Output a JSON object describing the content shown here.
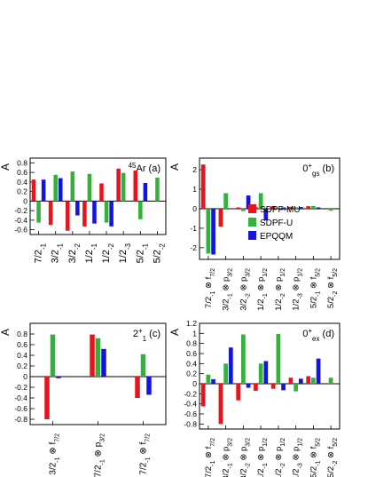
{
  "series_colors": [
    "#e8141c",
    "#33b13a",
    "#1414e0"
  ],
  "legend": [
    "SDPF-MU",
    "SDPF-U",
    "EPQQM"
  ],
  "chart_data": [
    {
      "type": "bar",
      "panel_label": "(a)",
      "label_parts": [
        {
          "t": "45",
          "sup": true
        },
        {
          "t": "Ar"
        },
        {
          "t": "  (a)"
        }
      ],
      "ylabel": "A",
      "ylim": [
        -0.7,
        0.9
      ],
      "yticks": [
        -0.6,
        -0.4,
        -0.2,
        0,
        0.2,
        0.4,
        0.6,
        0.8
      ],
      "categories": [
        [
          {
            "t": "7/2"
          },
          {
            "t": "-",
            "sub": true
          },
          {
            "t": "1",
            "sub": true
          }
        ],
        [
          {
            "t": "3/2"
          },
          {
            "t": "-",
            "sub": true
          },
          {
            "t": "1",
            "sub": true
          }
        ],
        [
          {
            "t": "3/2"
          },
          {
            "t": "-",
            "sub": true
          },
          {
            "t": "2",
            "sub": true
          }
        ],
        [
          {
            "t": "1/2"
          },
          {
            "t": "-",
            "sub": true
          },
          {
            "t": "1",
            "sub": true
          }
        ],
        [
          {
            "t": "1/2"
          },
          {
            "t": "-",
            "sub": true
          },
          {
            "t": "2",
            "sub": true
          }
        ],
        [
          {
            "t": "1/2"
          },
          {
            "t": "-",
            "sub": true
          },
          {
            "t": "3",
            "sub": true
          }
        ],
        [
          {
            "t": "5/2"
          },
          {
            "t": "-",
            "sub": true
          },
          {
            "t": "1",
            "sub": true
          }
        ],
        [
          {
            "t": "5/2"
          },
          {
            "t": "-",
            "sub": true
          },
          {
            "t": "2",
            "sub": true
          }
        ]
      ],
      "series": [
        {
          "name": "SDPF-MU",
          "values": [
            0.45,
            -0.5,
            -0.62,
            -0.53,
            0.37,
            0.68,
            0.64,
            null
          ]
        },
        {
          "name": "SDPF-U",
          "values": [
            -0.45,
            0.55,
            0.62,
            0.57,
            -0.45,
            0.59,
            -0.38,
            0.49
          ]
        },
        {
          "name": "EPQQM",
          "values": [
            0.45,
            0.48,
            -0.3,
            -0.47,
            -0.53,
            null,
            0.38,
            null
          ]
        }
      ]
    },
    {
      "type": "bar",
      "panel_label": "(b)",
      "label_parts": [
        {
          "t": "0"
        },
        {
          "t": "+",
          "sup": true
        },
        {
          "t": "gs",
          "sub": true
        },
        {
          "t": "  (b)"
        }
      ],
      "ylabel": "A",
      "ylim": [
        -2.6,
        2.6
      ],
      "yticks": [
        -2,
        -1,
        0,
        1,
        2
      ],
      "show_legend": true,
      "categories": [
        [
          {
            "t": "7/2"
          },
          {
            "t": "-",
            "sub": true
          },
          {
            "t": "1",
            "sub": true
          },
          {
            "t": " ⊗ f"
          },
          {
            "t": "7/2",
            "sub": true
          }
        ],
        [
          {
            "t": "3/2"
          },
          {
            "t": "-",
            "sub": true
          },
          {
            "t": "1",
            "sub": true
          },
          {
            "t": " ⊗ p"
          },
          {
            "t": "3/2",
            "sub": true
          }
        ],
        [
          {
            "t": "3/2"
          },
          {
            "t": "-",
            "sub": true
          },
          {
            "t": "2",
            "sub": true
          },
          {
            "t": " ⊗ p"
          },
          {
            "t": "3/2",
            "sub": true
          }
        ],
        [
          {
            "t": "1/2"
          },
          {
            "t": "-",
            "sub": true
          },
          {
            "t": "1",
            "sub": true
          },
          {
            "t": " ⊗ p"
          },
          {
            "t": "1/2",
            "sub": true
          }
        ],
        [
          {
            "t": "1/2"
          },
          {
            "t": "-",
            "sub": true
          },
          {
            "t": "2",
            "sub": true
          },
          {
            "t": " ⊗ p"
          },
          {
            "t": "1/2",
            "sub": true
          }
        ],
        [
          {
            "t": "1/2"
          },
          {
            "t": "-",
            "sub": true
          },
          {
            "t": "3",
            "sub": true
          },
          {
            "t": " ⊗ p"
          },
          {
            "t": "1/2",
            "sub": true
          }
        ],
        [
          {
            "t": "5/2"
          },
          {
            "t": "-",
            "sub": true
          },
          {
            "t": "1",
            "sub": true
          },
          {
            "t": " ⊗ f"
          },
          {
            "t": "5/2",
            "sub": true
          }
        ],
        [
          {
            "t": "5/2"
          },
          {
            "t": "-",
            "sub": true
          },
          {
            "t": "2",
            "sub": true
          },
          {
            "t": " ⊗ f"
          },
          {
            "t": "5/2",
            "sub": true
          }
        ]
      ],
      "series": [
        {
          "name": "SDPF-MU",
          "values": [
            2.27,
            -0.92,
            0.07,
            0.08,
            0.14,
            0.1,
            0.13,
            null
          ]
        },
        {
          "name": "SDPF-U",
          "values": [
            -2.3,
            0.8,
            -0.12,
            0.8,
            0.04,
            0.08,
            0.14,
            -0.1
          ]
        },
        {
          "name": "EPQQM",
          "values": [
            -2.35,
            null,
            0.68,
            -0.6,
            0.07,
            0.09,
            0.07,
            null
          ]
        }
      ]
    },
    {
      "type": "bar",
      "panel_label": "(c)",
      "label_parts": [
        {
          "t": "2"
        },
        {
          "t": "+",
          "sup": true
        },
        {
          "t": "1",
          "sub": true
        },
        {
          "t": "  (c)"
        }
      ],
      "ylabel": "A",
      "ylim": [
        -0.9,
        1.0
      ],
      "yticks": [
        -0.8,
        -0.6,
        -0.4,
        -0.2,
        0,
        0.2,
        0.4,
        0.6,
        0.8
      ],
      "categories": [
        [
          {
            "t": "3/2"
          },
          {
            "t": "-",
            "sub": true
          },
          {
            "t": "1",
            "sub": true
          },
          {
            "t": " ⊗ f"
          },
          {
            "t": "7/2",
            "sub": true
          }
        ],
        [
          {
            "t": "7/2"
          },
          {
            "t": "-",
            "sub": true
          },
          {
            "t": "1",
            "sub": true
          },
          {
            "t": " ⊗ p"
          },
          {
            "t": "3/2",
            "sub": true
          }
        ],
        [
          {
            "t": "7/2"
          },
          {
            "t": "-",
            "sub": true
          },
          {
            "t": "1",
            "sub": true
          },
          {
            "t": " ⊗ f"
          },
          {
            "t": "7/2",
            "sub": true
          }
        ]
      ],
      "series": [
        {
          "name": "SDPF-MU",
          "values": [
            -0.8,
            0.79,
            -0.4
          ]
        },
        {
          "name": "SDPF-U",
          "values": [
            0.79,
            0.72,
            0.42
          ]
        },
        {
          "name": "EPQQM",
          "values": [
            -0.03,
            0.52,
            -0.34
          ]
        }
      ]
    },
    {
      "type": "bar",
      "panel_label": "(d)",
      "label_parts": [
        {
          "t": "0"
        },
        {
          "t": "+",
          "sup": true
        },
        {
          "t": "ex",
          "sub": true
        },
        {
          "t": "  (d)"
        }
      ],
      "ylabel": "A",
      "ylim": [
        -0.9,
        1.2
      ],
      "yticks": [
        -0.8,
        -0.6,
        -0.4,
        -0.2,
        0,
        0.2,
        0.4,
        0.6,
        0.8,
        1,
        1.2
      ],
      "categories": [
        [
          {
            "t": "7/2"
          },
          {
            "t": "-",
            "sub": true
          },
          {
            "t": "1",
            "sub": true
          },
          {
            "t": " ⊗ f"
          },
          {
            "t": "7/2",
            "sub": true
          }
        ],
        [
          {
            "t": "3/2"
          },
          {
            "t": "-",
            "sub": true
          },
          {
            "t": "1",
            "sub": true
          },
          {
            "t": " ⊗ p"
          },
          {
            "t": "3/2",
            "sub": true
          }
        ],
        [
          {
            "t": "3/2"
          },
          {
            "t": "-",
            "sub": true
          },
          {
            "t": "2",
            "sub": true
          },
          {
            "t": " ⊗ p"
          },
          {
            "t": "3/2",
            "sub": true
          }
        ],
        [
          {
            "t": "1/2"
          },
          {
            "t": "-",
            "sub": true
          },
          {
            "t": "1",
            "sub": true
          },
          {
            "t": " ⊗ p"
          },
          {
            "t": "1/2",
            "sub": true
          }
        ],
        [
          {
            "t": "1/2"
          },
          {
            "t": "-",
            "sub": true
          },
          {
            "t": "2",
            "sub": true
          },
          {
            "t": " ⊗ p"
          },
          {
            "t": "1/2",
            "sub": true
          }
        ],
        [
          {
            "t": "1/2"
          },
          {
            "t": "-",
            "sub": true
          },
          {
            "t": "3",
            "sub": true
          },
          {
            "t": " ⊗ p"
          },
          {
            "t": "1/2",
            "sub": true
          }
        ],
        [
          {
            "t": "5/2"
          },
          {
            "t": "-",
            "sub": true
          },
          {
            "t": "1",
            "sub": true
          },
          {
            "t": " ⊗ f"
          },
          {
            "t": "5/2",
            "sub": true
          }
        ],
        [
          {
            "t": "5/2"
          },
          {
            "t": "-",
            "sub": true
          },
          {
            "t": "2",
            "sub": true
          },
          {
            "t": " ⊗ f"
          },
          {
            "t": "5/2",
            "sub": true
          }
        ]
      ],
      "series": [
        {
          "name": "SDPF-MU",
          "values": [
            -0.45,
            -0.8,
            -0.33,
            -0.14,
            -0.1,
            0.12,
            0.15,
            null
          ]
        },
        {
          "name": "SDPF-U",
          "values": [
            0.18,
            0.4,
            0.98,
            0.4,
            0.99,
            -0.15,
            0.12,
            0.12
          ]
        },
        {
          "name": "EPQQM",
          "values": [
            0.09,
            0.72,
            -0.08,
            0.45,
            -0.13,
            0.1,
            0.5,
            null
          ]
        }
      ]
    }
  ]
}
